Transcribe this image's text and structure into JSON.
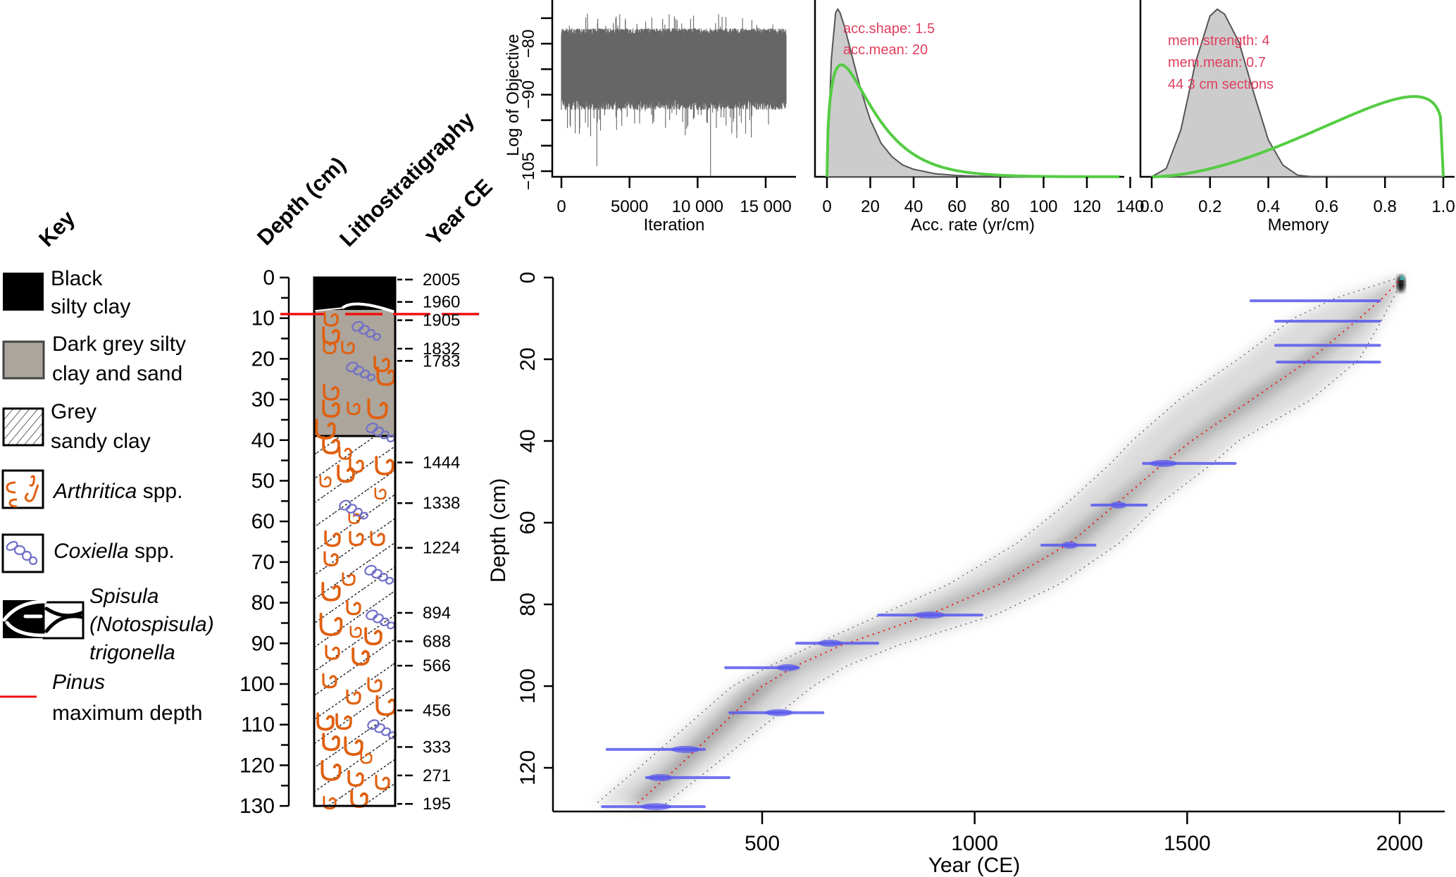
{
  "colors": {
    "trace": "#666666",
    "posterior_fill": "#cccccc",
    "posterior_line": "#555555",
    "prior": "#55cc44",
    "annotation": "#e0405f",
    "date_blue": "#5a5aee",
    "mean_red": "#ee1111",
    "pinus_red": "#ee1111",
    "black_clay": "#000000",
    "grey_clay": "#aca59b",
    "arthritica": "#e06010",
    "coxiella": "#7070c8"
  },
  "key": {
    "title": "Key",
    "items": [
      {
        "id": "black",
        "line1": "Black",
        "line2": "silty clay"
      },
      {
        "id": "darkgrey",
        "line1": "Dark grey silty",
        "line2": "clay and sand"
      },
      {
        "id": "grey",
        "line1": "Grey",
        "line2": "sandy clay"
      },
      {
        "id": "arthritica",
        "italic": "Arthritica",
        "rest": " spp."
      },
      {
        "id": "coxiella",
        "italic": "Coxiella",
        "rest": " spp."
      },
      {
        "id": "spisula",
        "line1": "Spisula",
        "line2": "(Notospisula)",
        "line3": "trigonella"
      },
      {
        "id": "pinus",
        "italic": "Pinus",
        "line2": "maximum depth"
      }
    ]
  },
  "column_headers": {
    "depth": "Depth (cm)",
    "litho": "Lithostratigraphy",
    "year": "Year CE"
  },
  "chart_data": [
    {
      "id": "iteration",
      "type": "line",
      "title": "",
      "xlabel": "Iteration",
      "ylabel": "Log of Objective",
      "xlim": [
        0,
        16500
      ],
      "ylim": [
        -106,
        -72
      ],
      "xticks": [
        0,
        5000,
        10000,
        15000
      ],
      "xtick_labels": [
        "0",
        "5000",
        "10 000",
        "15 000"
      ],
      "yticks": [
        -75,
        -80,
        -85,
        -90,
        -95,
        -100,
        -105
      ],
      "ytick_labels": {
        "-80": "−80",
        "-90": "−90",
        "-105": "−105"
      },
      "series_summary": {
        "typical_range": [
          -93,
          -77
        ],
        "min": -106,
        "max": -72,
        "n_iterations": 16500
      }
    },
    {
      "id": "accrate",
      "type": "area",
      "xlabel": "Acc. rate (yr/cm)",
      "ylabel": "",
      "xlim": [
        0,
        140
      ],
      "xticks": [
        0,
        20,
        40,
        60,
        80,
        100,
        120,
        140
      ],
      "xtick_labels": [
        "0",
        "20",
        "40",
        "60",
        "80",
        "100",
        "120",
        "140"
      ],
      "annotations": [
        "acc.shape:  1.5",
        "acc.mean:  20"
      ],
      "prior": {
        "name": "prior",
        "shape": 1.5,
        "mean": 20
      },
      "posterior": {
        "name": "posterior",
        "x": [
          0,
          2,
          4,
          5,
          6,
          8,
          10,
          12,
          15,
          18,
          20,
          25,
          30,
          35,
          40,
          50,
          60,
          70,
          80,
          100,
          140
        ],
        "y": [
          0,
          0.7,
          0.98,
          1.0,
          0.98,
          0.9,
          0.8,
          0.7,
          0.55,
          0.42,
          0.34,
          0.2,
          0.12,
          0.07,
          0.045,
          0.018,
          0.008,
          0.003,
          0.001,
          0,
          0
        ]
      }
    },
    {
      "id": "memory",
      "type": "area",
      "xlabel": "Memory",
      "ylabel": "",
      "xlim": [
        0,
        1
      ],
      "xticks": [
        0,
        0.2,
        0.4,
        0.6,
        0.8,
        1.0
      ],
      "xtick_labels": [
        "0.0",
        "0.2",
        "0.4",
        "0.6",
        "0.8",
        "1.0"
      ],
      "annotations": [
        "mem.strength: 4",
        "mem.mean: 0.7",
        "44 3 cm sections"
      ],
      "prior": {
        "name": "prior",
        "strength": 4,
        "mean": 0.7
      },
      "posterior": {
        "name": "posterior",
        "x": [
          0,
          0.05,
          0.1,
          0.15,
          0.2,
          0.225,
          0.25,
          0.3,
          0.35,
          0.4,
          0.45,
          0.5,
          0.55,
          1.0
        ],
        "y": [
          0,
          0.05,
          0.28,
          0.68,
          0.96,
          1.0,
          0.97,
          0.8,
          0.5,
          0.22,
          0.07,
          0.01,
          0,
          0
        ]
      }
    },
    {
      "id": "lithostratigraphy",
      "type": "table",
      "ylabel": "Depth (cm)",
      "ylim": [
        0,
        130
      ],
      "yticks": [
        0,
        10,
        20,
        30,
        40,
        50,
        60,
        70,
        80,
        90,
        100,
        110,
        120,
        130
      ],
      "units": [
        {
          "type": "black",
          "top": 0,
          "bottom": 8
        },
        {
          "type": "darkgrey",
          "top": 8,
          "bottom": 39
        },
        {
          "type": "grey",
          "top": 39,
          "bottom": 130
        }
      ],
      "pinus_max_depth": 9,
      "year_labels": [
        {
          "depth": 0.5,
          "year": "2005"
        },
        {
          "depth": 6,
          "year": "1960"
        },
        {
          "depth": 10.5,
          "year": "1905"
        },
        {
          "depth": 17.5,
          "year": "1832"
        },
        {
          "depth": 20.5,
          "year": "1783"
        },
        {
          "depth": 45.5,
          "year": "1444"
        },
        {
          "depth": 55.5,
          "year": "1338"
        },
        {
          "depth": 66.5,
          "year": "1224"
        },
        {
          "depth": 82.5,
          "year": "894"
        },
        {
          "depth": 89.5,
          "year": "688"
        },
        {
          "depth": 95.5,
          "year": "566"
        },
        {
          "depth": 106.5,
          "year": "456"
        },
        {
          "depth": 115.5,
          "year": "333"
        },
        {
          "depth": 122.5,
          "year": "271"
        },
        {
          "depth": 129.5,
          "year": "195"
        }
      ]
    },
    {
      "id": "agedepth",
      "type": "scatter",
      "xlabel": "Year (CE)",
      "ylabel": "Depth (cm)",
      "xlim": [
        -150,
        2100
      ],
      "ylim": [
        130,
        0
      ],
      "xticks": [
        500,
        1000,
        1500,
        2000
      ],
      "yticks": [
        0,
        20,
        40,
        60,
        80,
        100,
        120
      ],
      "dates": [
        {
          "depth": 5.7,
          "min": 1650,
          "max": 1953
        },
        {
          "depth": 10.7,
          "min": 1708,
          "max": 1953
        },
        {
          "depth": 16.6,
          "min": 1708,
          "max": 1953
        },
        {
          "depth": 20.7,
          "min": 1712,
          "max": 1953
        },
        {
          "depth": 45.5,
          "min": 1397,
          "max": 1613,
          "peak": 1444
        },
        {
          "depth": 55.7,
          "min": 1276,
          "max": 1404,
          "peak": 1338
        },
        {
          "depth": 65.5,
          "min": 1158,
          "max": 1283,
          "peak": 1224
        },
        {
          "depth": 82.6,
          "min": 774,
          "max": 1017,
          "peak": 894
        },
        {
          "depth": 89.5,
          "min": 581,
          "max": 772,
          "peak": 660
        },
        {
          "depth": 95.5,
          "min": 414,
          "max": 585,
          "peak": 560
        },
        {
          "depth": 106.5,
          "min": 424,
          "max": 643,
          "peak": 540
        },
        {
          "depth": 115.5,
          "min": 135,
          "max": 364,
          "peak": 320
        },
        {
          "depth": 122.4,
          "min": 228,
          "max": 422,
          "peak": 260
        },
        {
          "depth": 129.5,
          "min": 124,
          "max": 364,
          "peak": 250
        }
      ],
      "model": {
        "depth": [
          0,
          5,
          10,
          20,
          30,
          40,
          45.5,
          55,
          65,
          75,
          82.5,
          90,
          95,
          100,
          110,
          120,
          129
        ],
        "mean": [
          2005,
          1960,
          1905,
          1790,
          1650,
          1510,
          1444,
          1338,
          1224,
          1060,
          894,
          688,
          580,
          500,
          400,
          300,
          203
        ],
        "lower": [
          2000,
          1850,
          1750,
          1620,
          1480,
          1370,
          1320,
          1220,
          1100,
          940,
          780,
          620,
          520,
          430,
          320,
          210,
          107
        ],
        "upper": [
          2010,
          1985,
          1960,
          1905,
          1790,
          1620,
          1560,
          1440,
          1340,
          1200,
          1050,
          820,
          700,
          620,
          500,
          380,
          270
        ]
      }
    }
  ]
}
